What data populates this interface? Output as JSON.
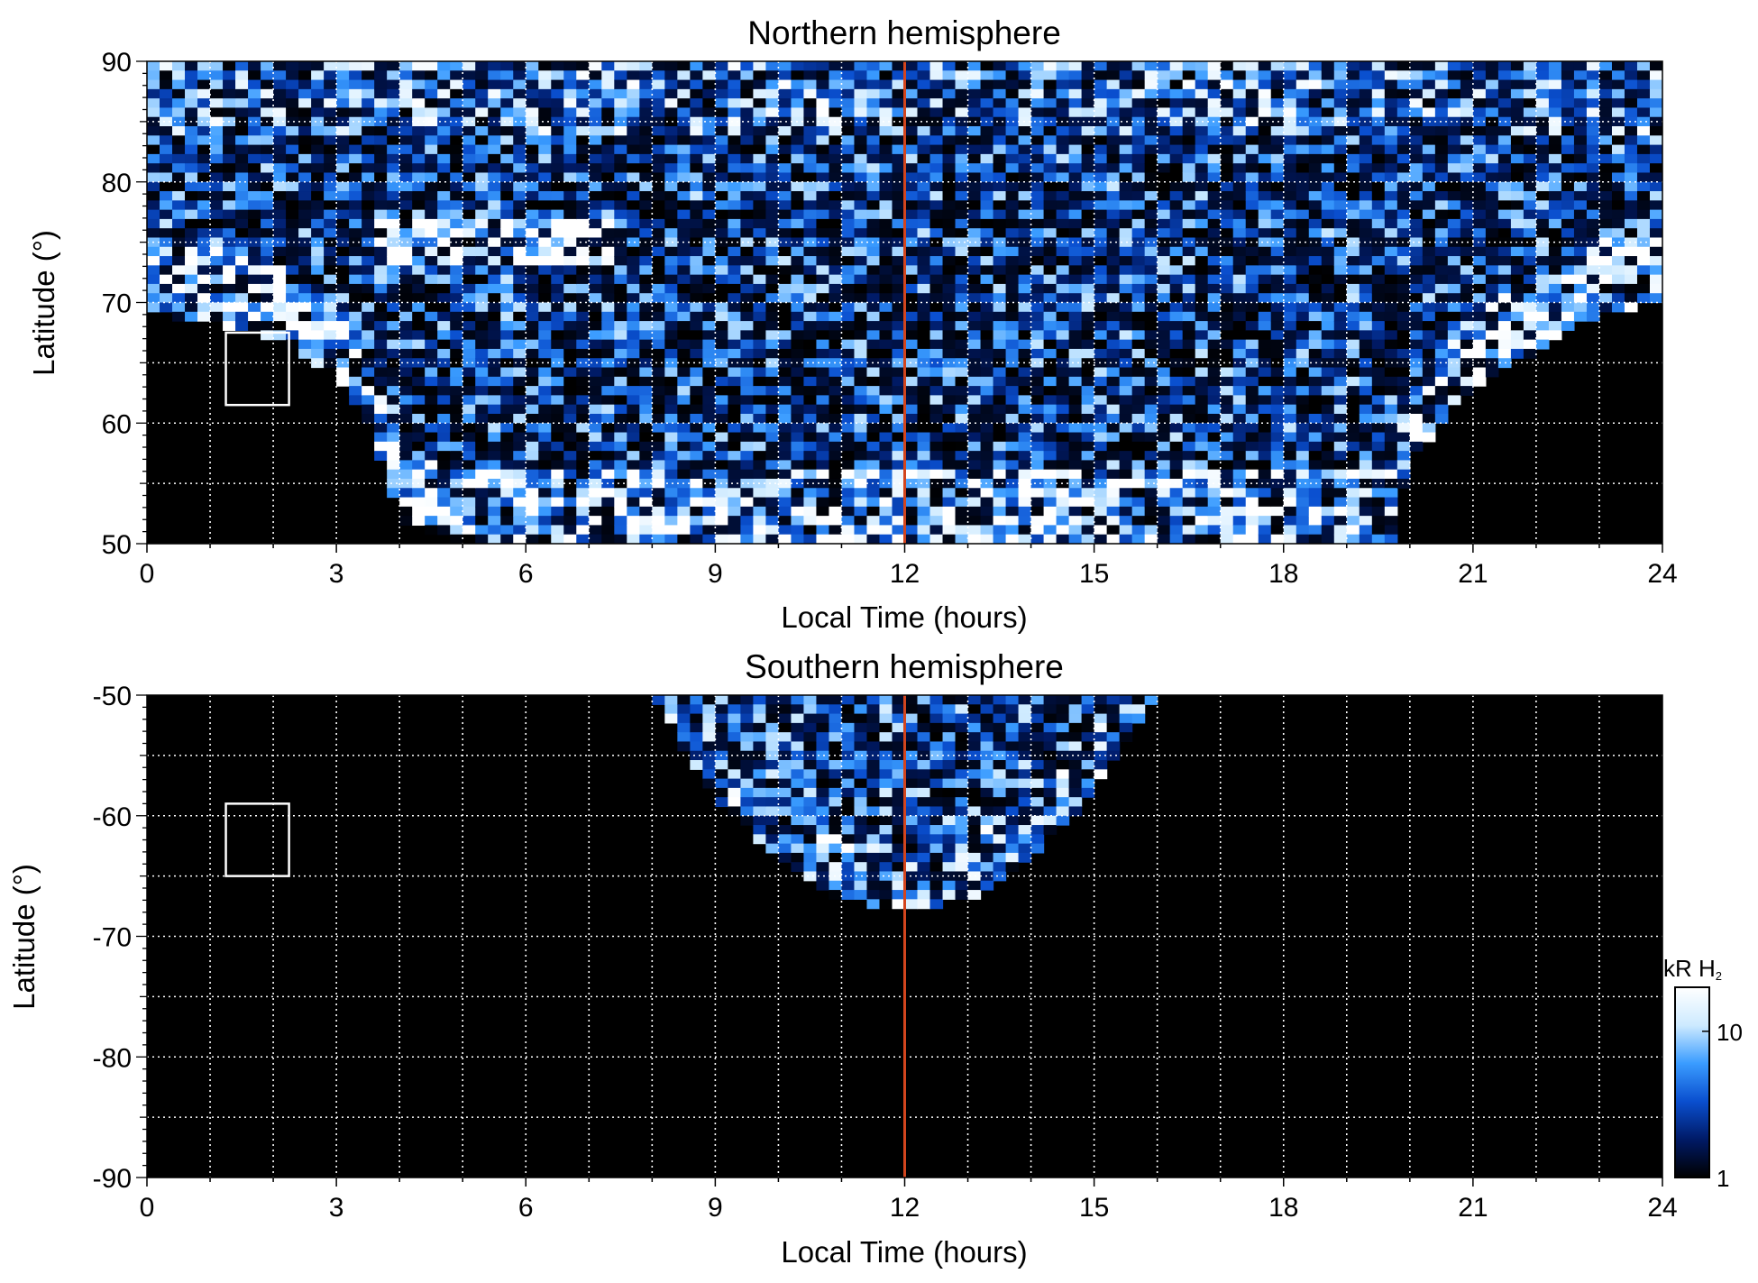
{
  "chart_data": [
    {
      "type": "heatmap",
      "title": "Northern hemisphere",
      "xlabel": "Local Time (hours)",
      "ylabel": "Latitude (°)",
      "xlim": [
        0,
        24
      ],
      "ylim": [
        50,
        90
      ],
      "x_ticks": [
        "0",
        "3",
        "6",
        "9",
        "12",
        "15",
        "18",
        "21",
        "24"
      ],
      "y_ticks": [
        "50",
        "60",
        "70",
        "80",
        "90"
      ],
      "y_tick_values": [
        50,
        60,
        70,
        80,
        90
      ],
      "grid": true,
      "grid_x_step_hours": 1,
      "grid_y_step_deg": 5,
      "reference_line_local_time": 12,
      "reference_line_color": "#d2451e",
      "boxes": [
        {
          "local_time": [
            1.25,
            2.25
          ],
          "latitude": [
            61.5,
            67.5
          ]
        }
      ],
      "emission": {
        "description": "Auroral H2 emission intensity map; no-data region (black) is bounded below ~70° at dawn/dusk, opening to 50° from ~4 h to ~20 h local time",
        "coverage_boundary_latitude": {
          "local_time": [
            0,
            1,
            2,
            3,
            3.5,
            4,
            5,
            6,
            8,
            12,
            16,
            18,
            19,
            19.7,
            20,
            21,
            22,
            23,
            24
          ],
          "latitude": [
            69,
            68.5,
            67,
            64,
            60,
            52,
            50,
            50,
            50,
            50,
            50,
            50,
            50,
            50,
            57,
            63,
            66,
            69,
            70
          ]
        }
      }
    },
    {
      "type": "heatmap",
      "title": "Southern hemisphere",
      "xlabel": "Local Time (hours)",
      "ylabel": "Latitude (°)",
      "xlim": [
        0,
        24
      ],
      "ylim": [
        -90,
        -50
      ],
      "x_ticks": [
        "0",
        "3",
        "6",
        "9",
        "12",
        "15",
        "18",
        "21",
        "24"
      ],
      "y_ticks": [
        "-50",
        "-60",
        "-70",
        "-80",
        "-90"
      ],
      "y_tick_values": [
        -50,
        -60,
        -70,
        -80,
        -90
      ],
      "grid": true,
      "grid_x_step_hours": 1,
      "grid_y_step_deg": 5,
      "reference_line_local_time": 12,
      "reference_line_color": "#d2451e",
      "boxes": [
        {
          "local_time": [
            1.25,
            2.25
          ],
          "latitude": [
            -65,
            -59
          ]
        }
      ],
      "emission": {
        "description": "Coverage limited to a lobe centred on noon, from ~8 h to ~16 h local time, reaching down to about -68°",
        "coverage_boundary_latitude": {
          "local_time": [
            8,
            9,
            10,
            11,
            12,
            13,
            14,
            15,
            16
          ],
          "latitude": [
            -50,
            -58.5,
            -63.5,
            -67,
            -68,
            -67,
            -63.5,
            -58,
            -50
          ]
        }
      }
    }
  ],
  "colorbar": {
    "label_main": "kR H",
    "label_sub": "2",
    "scale": "log",
    "range": [
      1,
      20
    ],
    "ticks": [
      "10",
      "1"
    ],
    "tick_values": [
      10,
      1
    ],
    "colors": [
      "#000000",
      "#001a66",
      "#0a4fcf",
      "#3a9cff",
      "#cdeaff",
      "#ffffff"
    ]
  }
}
